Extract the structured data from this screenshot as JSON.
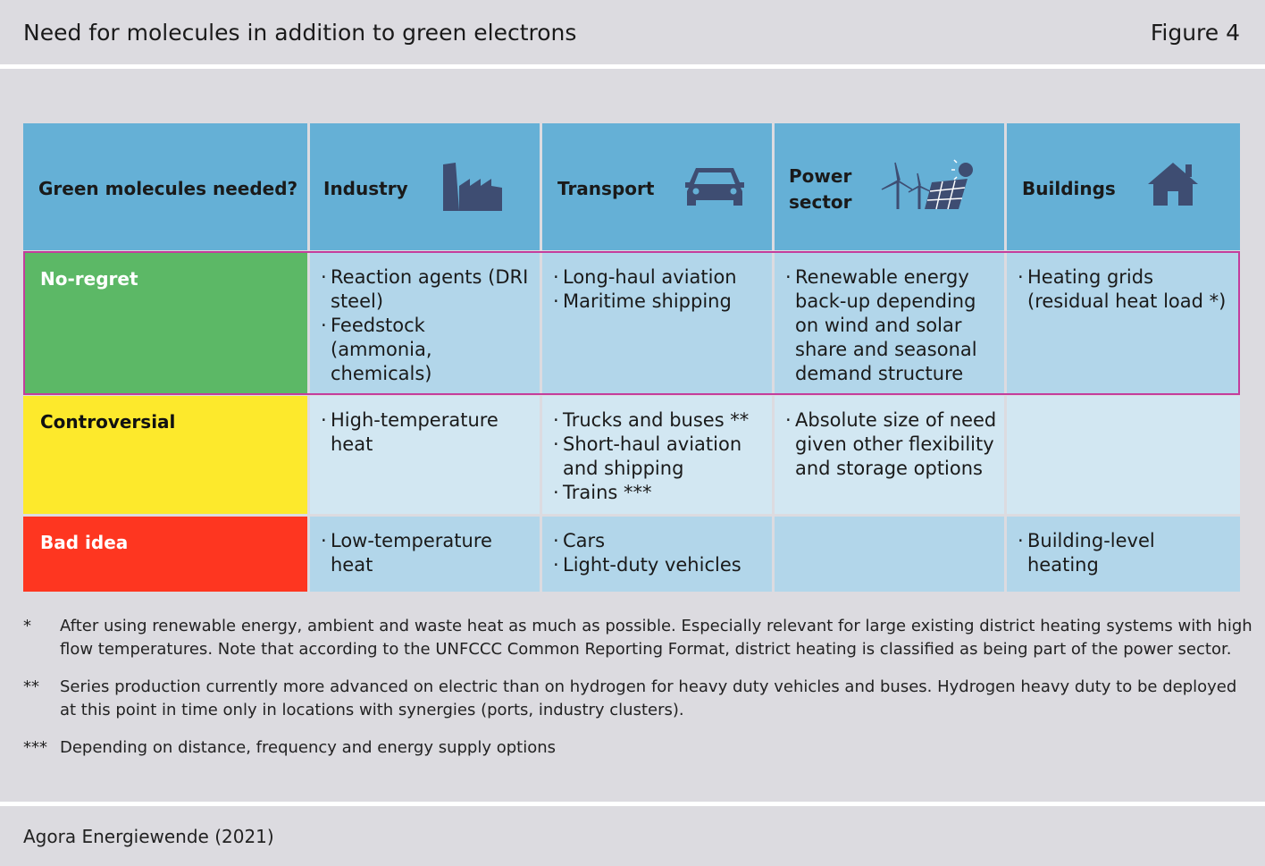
{
  "header": {
    "title": "Need for molecules in addition to green electrons",
    "figure": "Figure 4"
  },
  "table": {
    "corner": "Green molecules needed?",
    "columns": [
      {
        "label": "Industry",
        "icon": "factory-icon"
      },
      {
        "label": "Transport",
        "icon": "car-icon"
      },
      {
        "label": "Power sector",
        "icon": "wind-solar-icon"
      },
      {
        "label": "Buildings",
        "icon": "house-icon"
      }
    ],
    "rows": [
      {
        "label": "No-regret",
        "color": "#5cb866",
        "industry": [
          "Reaction agents (DRI steel)",
          "Feedstock (ammonia, chemicals)"
        ],
        "transport": [
          "Long-haul aviation",
          "Maritime shipping"
        ],
        "power": [
          "Renewable energy back-up depending on wind and solar share and seasonal demand structure"
        ],
        "buildings": [
          "Heating grids (residual heat load *)"
        ]
      },
      {
        "label": "Controversial",
        "color": "#fde92c",
        "industry": [
          "High-temperature heat"
        ],
        "transport": [
          "Trucks and buses **",
          "Short-haul aviation and shipping",
          "Trains ***"
        ],
        "power": [
          "Absolute size of need given other flexibility and storage options"
        ],
        "buildings": []
      },
      {
        "label": "Bad idea",
        "color": "#fe3620",
        "industry": [
          "Low-temperature heat"
        ],
        "transport": [
          "Cars",
          "Light-duty vehicles"
        ],
        "power": [],
        "buildings": [
          "Building-level heating"
        ]
      }
    ]
  },
  "notes": [
    {
      "mark": "*",
      "text": "After using renewable energy, ambient and waste heat as much as possible. Especially relevant for large existing district heating systems with high flow temperatures. Note that according to the UNFCCC Common Reporting Format, district heating is classified as being part of the power sector."
    },
    {
      "mark": "**",
      "text": "Series production currently more advanced on electric than on hydrogen for heavy duty vehicles and buses. Hydrogen heavy duty to be deployed at this point in time only in locations with synergies (ports, industry clusters)."
    },
    {
      "mark": "***",
      "text": "Depending on distance, frequency and energy supply options"
    }
  ],
  "source": "Agora Energiewende (2021)"
}
